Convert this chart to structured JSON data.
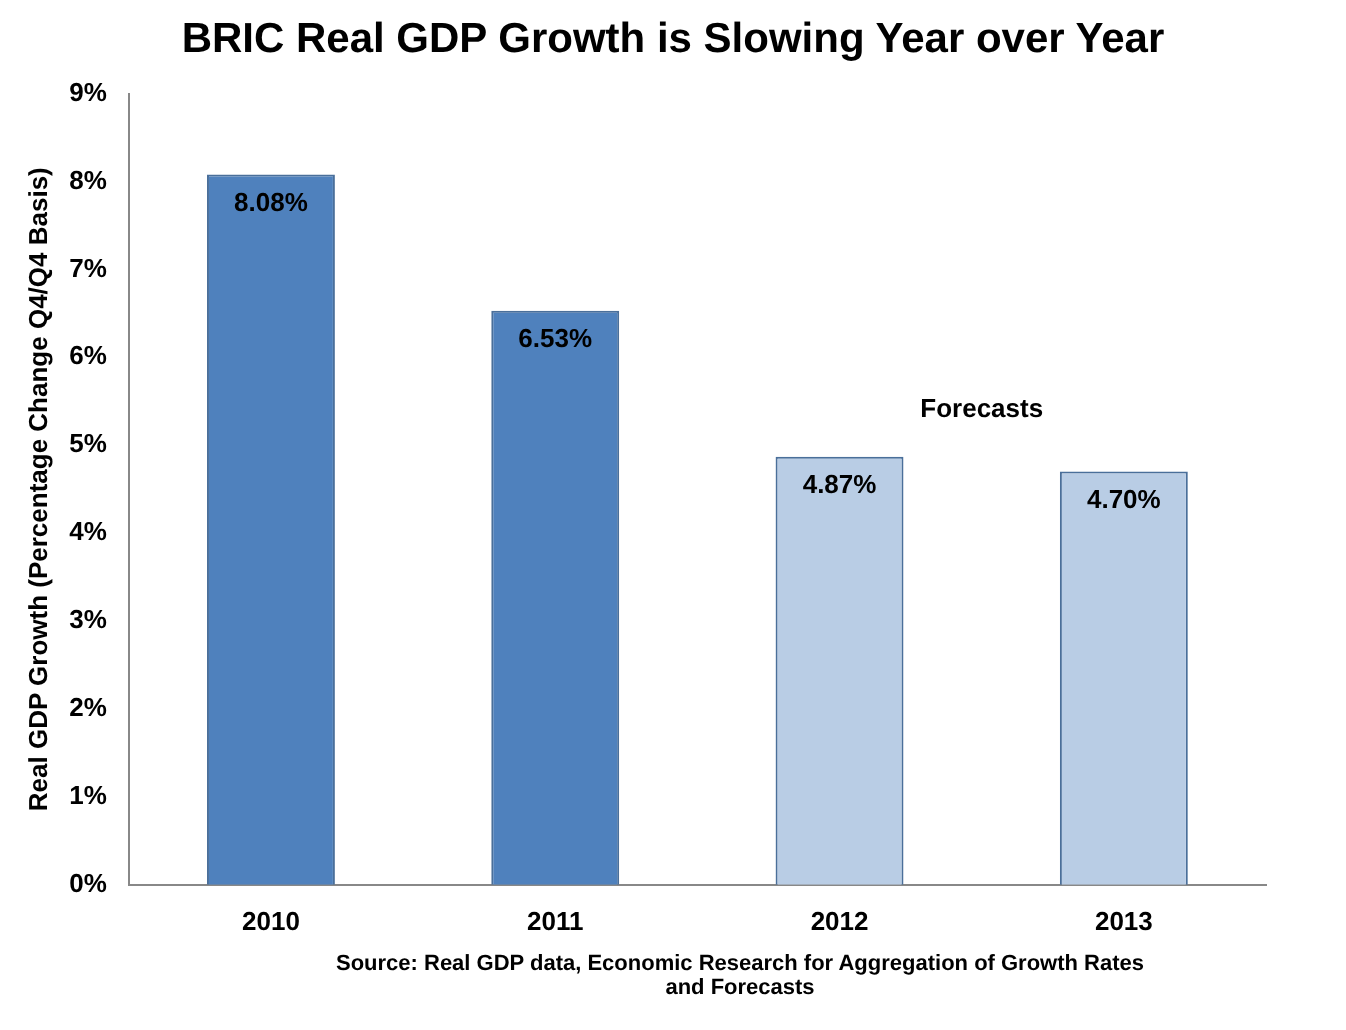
{
  "chart_data": {
    "type": "bar",
    "title": "BRIC Real GDP Growth is Slowing Year over Year",
    "ylabel": "Real GDP Growth (Percentage Change Q4/Q4 Basis)",
    "categories": [
      "2010",
      "2011",
      "2012",
      "2013"
    ],
    "values": [
      8.08,
      6.53,
      4.87,
      4.7
    ],
    "colors": [
      "#4f81bd",
      "#4f81bd",
      "#b9cde5",
      "#b9cde5"
    ],
    "value_labels": [
      "8.08%",
      "6.53%",
      "4.87%",
      "4.70%"
    ],
    "ylim": [
      0,
      9
    ],
    "yticks": [
      {
        "value": 0,
        "label": "0%"
      },
      {
        "value": 1,
        "label": "1%"
      },
      {
        "value": 2,
        "label": "2%"
      },
      {
        "value": 3,
        "label": "3%"
      },
      {
        "value": 4,
        "label": "4%"
      },
      {
        "value": 5,
        "label": "5%"
      },
      {
        "value": 6,
        "label": "6%"
      },
      {
        "value": 7,
        "label": "7%"
      },
      {
        "value": 8,
        "label": "8%"
      },
      {
        "value": 9,
        "label": "9%"
      }
    ],
    "grid": false,
    "legend": false,
    "annotations": [
      "Forecasts",
      "Source: Real GDP data, Economic Research for Aggregation of Growth Rates and Forecasts"
    ]
  }
}
